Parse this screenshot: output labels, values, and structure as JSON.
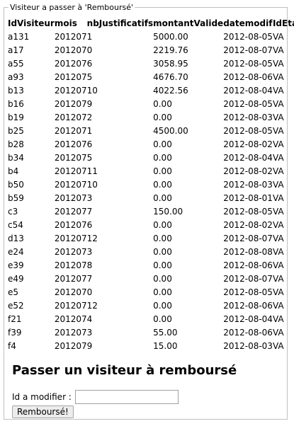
{
  "fieldset": {
    "legend": "Visiteur a passer à 'Remboursé'"
  },
  "table": {
    "headers": [
      "IdVisiteur",
      "mois",
      "nbJustificatifs",
      "montantValide",
      "datemodif",
      "IdEtat"
    ],
    "rows": [
      [
        "a131",
        "201207",
        "1",
        "5000.00",
        "2012-08-05",
        "VA"
      ],
      [
        "a17",
        "201207",
        "0",
        "2219.76",
        "2012-08-07",
        "VA"
      ],
      [
        "a55",
        "201207",
        "6",
        "3058.95",
        "2012-08-05",
        "VA"
      ],
      [
        "a93",
        "201207",
        "5",
        "4676.70",
        "2012-08-06",
        "VA"
      ],
      [
        "b13",
        "201207",
        "10",
        "4022.56",
        "2012-08-04",
        "VA"
      ],
      [
        "b16",
        "201207",
        "9",
        "0.00",
        "2012-08-05",
        "VA"
      ],
      [
        "b19",
        "201207",
        "2",
        "0.00",
        "2012-08-03",
        "VA"
      ],
      [
        "b25",
        "201207",
        "1",
        "4500.00",
        "2012-08-05",
        "VA"
      ],
      [
        "b28",
        "201207",
        "6",
        "0.00",
        "2012-08-02",
        "VA"
      ],
      [
        "b34",
        "201207",
        "5",
        "0.00",
        "2012-08-04",
        "VA"
      ],
      [
        "b4",
        "201207",
        "11",
        "0.00",
        "2012-08-02",
        "VA"
      ],
      [
        "b50",
        "201207",
        "10",
        "0.00",
        "2012-08-03",
        "VA"
      ],
      [
        "b59",
        "201207",
        "3",
        "0.00",
        "2012-08-01",
        "VA"
      ],
      [
        "c3",
        "201207",
        "7",
        "150.00",
        "2012-08-05",
        "VA"
      ],
      [
        "c54",
        "201207",
        "6",
        "0.00",
        "2012-08-02",
        "VA"
      ],
      [
        "d13",
        "201207",
        "12",
        "0.00",
        "2012-08-07",
        "VA"
      ],
      [
        "e24",
        "201207",
        "3",
        "0.00",
        "2012-08-08",
        "VA"
      ],
      [
        "e39",
        "201207",
        "8",
        "0.00",
        "2012-08-06",
        "VA"
      ],
      [
        "e49",
        "201207",
        "7",
        "0.00",
        "2012-08-07",
        "VA"
      ],
      [
        "e5",
        "201207",
        "0",
        "0.00",
        "2012-08-05",
        "VA"
      ],
      [
        "e52",
        "201207",
        "12",
        "0.00",
        "2012-08-06",
        "VA"
      ],
      [
        "f21",
        "201207",
        "4",
        "0.00",
        "2012-08-04",
        "VA"
      ],
      [
        "f39",
        "201207",
        "3",
        "55.00",
        "2012-08-06",
        "VA"
      ],
      [
        "f4",
        "201207",
        "9",
        "15.00",
        "2012-08-03",
        "VA"
      ]
    ]
  },
  "form": {
    "heading": "Passer un visiteur à remboursé",
    "id_label": "Id a modifier :",
    "id_value": "",
    "submit_label": "Remboursé!"
  }
}
